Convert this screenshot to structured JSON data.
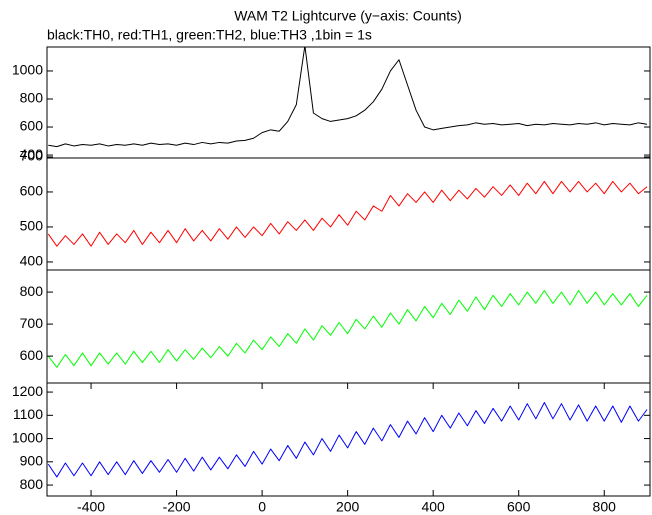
{
  "chart_data": [
    {
      "type": "line",
      "title": "WAM T2 Lightcurve (y−axis: Counts)",
      "subtitle": "black:TH0, red:TH1, green:TH2, blue:TH3 ,1bin = 1s",
      "color": "#000000",
      "x": [
        -500,
        -480,
        -460,
        -440,
        -420,
        -400,
        -380,
        -360,
        -340,
        -320,
        -300,
        -280,
        -260,
        -240,
        -220,
        -200,
        -180,
        -160,
        -140,
        -120,
        -100,
        -80,
        -60,
        -40,
        -20,
        0,
        20,
        40,
        60,
        80,
        100,
        120,
        140,
        160,
        180,
        200,
        220,
        240,
        260,
        280,
        300,
        320,
        340,
        360,
        380,
        400,
        420,
        440,
        460,
        480,
        500,
        520,
        540,
        560,
        580,
        600,
        620,
        640,
        660,
        680,
        700,
        720,
        740,
        760,
        780,
        800,
        820,
        840,
        860,
        880,
        900
      ],
      "values": [
        470,
        460,
        480,
        465,
        475,
        470,
        480,
        465,
        475,
        470,
        480,
        470,
        485,
        475,
        480,
        470,
        485,
        475,
        490,
        480,
        490,
        485,
        500,
        505,
        520,
        560,
        580,
        570,
        640,
        760,
        1180,
        700,
        660,
        640,
        650,
        660,
        680,
        720,
        780,
        870,
        1000,
        1080,
        900,
        720,
        600,
        580,
        590,
        600,
        610,
        615,
        630,
        620,
        625,
        615,
        620,
        625,
        610,
        620,
        615,
        625,
        620,
        615,
        625,
        620,
        630,
        615,
        625,
        620,
        615,
        630,
        620
      ],
      "xlim": [
        -503,
        907
      ],
      "ylim": [
        379,
        1171
      ],
      "yticks": [
        400,
        600,
        800,
        1000
      ]
    },
    {
      "type": "line",
      "color": "#ff0000",
      "x": [
        -500,
        -480,
        -460,
        -440,
        -420,
        -400,
        -380,
        -360,
        -340,
        -320,
        -300,
        -280,
        -260,
        -240,
        -220,
        -200,
        -180,
        -160,
        -140,
        -120,
        -100,
        -80,
        -60,
        -40,
        -20,
        0,
        20,
        40,
        60,
        80,
        100,
        120,
        140,
        160,
        180,
        200,
        220,
        240,
        260,
        280,
        300,
        320,
        340,
        360,
        380,
        400,
        420,
        440,
        460,
        480,
        500,
        520,
        540,
        560,
        580,
        600,
        620,
        640,
        660,
        680,
        700,
        720,
        740,
        760,
        780,
        800,
        820,
        840,
        860,
        880,
        900
      ],
      "values": [
        480,
        445,
        475,
        450,
        480,
        445,
        485,
        450,
        480,
        455,
        490,
        450,
        485,
        455,
        490,
        455,
        495,
        460,
        490,
        460,
        495,
        465,
        500,
        470,
        500,
        475,
        510,
        480,
        515,
        490,
        520,
        490,
        525,
        500,
        535,
        505,
        545,
        520,
        560,
        545,
        590,
        560,
        595,
        570,
        600,
        570,
        605,
        575,
        605,
        580,
        610,
        585,
        615,
        590,
        620,
        590,
        625,
        595,
        630,
        595,
        630,
        600,
        630,
        600,
        625,
        595,
        630,
        600,
        625,
        595,
        615
      ],
      "xlim": [
        -503,
        907
      ],
      "ylim": [
        377,
        697
      ],
      "yticks": [
        400,
        500,
        600,
        700
      ]
    },
    {
      "type": "line",
      "color": "#00ff00",
      "x": [
        -500,
        -480,
        -460,
        -440,
        -420,
        -400,
        -380,
        -360,
        -340,
        -320,
        -300,
        -280,
        -260,
        -240,
        -220,
        -200,
        -180,
        -160,
        -140,
        -120,
        -100,
        -80,
        -60,
        -40,
        -20,
        0,
        20,
        40,
        60,
        80,
        100,
        120,
        140,
        160,
        180,
        200,
        220,
        240,
        260,
        280,
        300,
        320,
        340,
        360,
        380,
        400,
        420,
        440,
        460,
        480,
        500,
        520,
        540,
        560,
        580,
        600,
        620,
        640,
        660,
        680,
        700,
        720,
        740,
        760,
        780,
        800,
        820,
        840,
        860,
        880,
        900
      ],
      "values": [
        600,
        565,
        605,
        570,
        610,
        570,
        610,
        575,
        610,
        575,
        615,
        580,
        615,
        580,
        620,
        585,
        620,
        590,
        625,
        595,
        630,
        600,
        640,
        610,
        650,
        620,
        660,
        630,
        670,
        640,
        685,
        650,
        695,
        665,
        705,
        670,
        715,
        685,
        725,
        690,
        735,
        700,
        745,
        710,
        755,
        720,
        765,
        730,
        775,
        740,
        785,
        745,
        790,
        755,
        795,
        760,
        800,
        765,
        805,
        765,
        800,
        760,
        805,
        765,
        800,
        760,
        795,
        760,
        795,
        755,
        790
      ],
      "xlim": [
        -503,
        907
      ],
      "ylim": [
        516,
        869
      ],
      "yticks": [
        600,
        700,
        800
      ]
    },
    {
      "type": "line",
      "color": "#0000ff",
      "x": [
        -500,
        -480,
        -460,
        -440,
        -420,
        -400,
        -380,
        -360,
        -340,
        -320,
        -300,
        -280,
        -260,
        -240,
        -220,
        -200,
        -180,
        -160,
        -140,
        -120,
        -100,
        -80,
        -60,
        -40,
        -20,
        0,
        20,
        40,
        60,
        80,
        100,
        120,
        140,
        160,
        180,
        200,
        220,
        240,
        260,
        280,
        300,
        320,
        340,
        360,
        380,
        400,
        420,
        440,
        460,
        480,
        500,
        520,
        540,
        560,
        580,
        600,
        620,
        640,
        660,
        680,
        700,
        720,
        740,
        760,
        780,
        800,
        820,
        840,
        860,
        880,
        900
      ],
      "values": [
        890,
        835,
        895,
        840,
        895,
        840,
        900,
        845,
        900,
        845,
        905,
        850,
        905,
        855,
        910,
        855,
        915,
        860,
        920,
        865,
        920,
        870,
        930,
        880,
        945,
        890,
        955,
        905,
        970,
        915,
        985,
        930,
        1000,
        945,
        1015,
        960,
        1030,
        975,
        1045,
        990,
        1060,
        1005,
        1075,
        1020,
        1090,
        1030,
        1100,
        1045,
        1110,
        1055,
        1120,
        1065,
        1130,
        1075,
        1140,
        1080,
        1150,
        1085,
        1155,
        1085,
        1150,
        1080,
        1145,
        1075,
        1140,
        1075,
        1140,
        1070,
        1140,
        1075,
        1125
      ],
      "xlim": [
        -503,
        907
      ],
      "xticks": [
        -400,
        -200,
        0,
        200,
        400,
        600,
        800
      ],
      "ylim": [
        753,
        1239
      ],
      "yticks": [
        800,
        900,
        1000,
        1100,
        1200
      ]
    }
  ]
}
